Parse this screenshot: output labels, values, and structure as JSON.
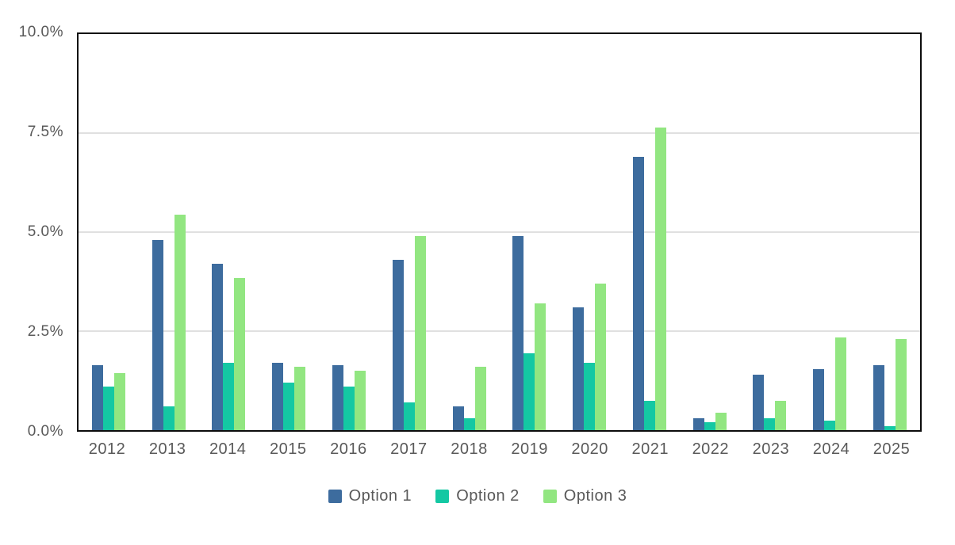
{
  "chart_data": {
    "type": "bar",
    "title": "",
    "xlabel": "",
    "ylabel": "",
    "categories": [
      "2012",
      "2013",
      "2014",
      "2015",
      "2016",
      "2017",
      "2018",
      "2019",
      "2020",
      "2021",
      "2022",
      "2023",
      "2024",
      "2025"
    ],
    "series": [
      {
        "name": "Option 1",
        "color": "#3D6C9E",
        "values": [
          1.65,
          4.8,
          4.2,
          1.7,
          1.65,
          4.3,
          0.6,
          4.9,
          3.1,
          6.9,
          0.3,
          1.4,
          1.55,
          1.65
        ]
      },
      {
        "name": "Option 2",
        "color": "#14C8A3",
        "values": [
          1.1,
          0.6,
          1.7,
          1.2,
          1.1,
          0.7,
          0.3,
          1.95,
          1.7,
          0.75,
          0.2,
          0.3,
          0.25,
          0.1
        ]
      },
      {
        "name": "Option 3",
        "color": "#92E681",
        "values": [
          1.45,
          5.45,
          3.85,
          1.6,
          1.5,
          4.9,
          1.6,
          3.2,
          3.7,
          7.65,
          0.45,
          0.75,
          2.35,
          2.3
        ]
      }
    ],
    "ylim": [
      0,
      10
    ],
    "yticks": [
      {
        "label": "0.0%",
        "value": 0
      },
      {
        "label": "2.5%",
        "value": 2.5
      },
      {
        "label": "5.0%",
        "value": 5
      },
      {
        "label": "7.5%",
        "value": 7.5
      },
      {
        "label": "10.0%",
        "value": 10
      }
    ],
    "grid": "horizontal",
    "legend_position": "bottom"
  },
  "style": {
    "axis_text_color": "#595959",
    "gridline_color": "#e0e0e0",
    "frame_color": "#0d0d0d",
    "background": "#ffffff"
  }
}
